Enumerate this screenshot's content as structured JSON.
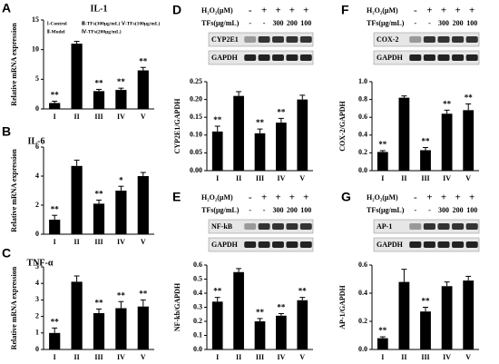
{
  "chart_data": [
    {
      "type": "bar",
      "panel": "A",
      "title": "IL-1",
      "y_label": "Relative mRNA expression",
      "categories": [
        "I",
        "II",
        "III",
        "IV",
        "V"
      ],
      "values": [
        1.0,
        11.0,
        3.0,
        3.2,
        6.5
      ],
      "errors": [
        0.3,
        0.4,
        0.3,
        0.3,
        0.5
      ],
      "annotations": [
        "**",
        null,
        "**",
        "**",
        "**"
      ],
      "color": "#000000",
      "ylim": [
        0,
        15
      ],
      "yticks": [
        0,
        5,
        10,
        15
      ],
      "legend": [
        "Ⅰ-Control",
        "Ⅲ-TFs(300μg/mL)",
        "Ⅴ-TFs(100μg/mL)",
        "Ⅱ-Model",
        "Ⅳ-TFs(200μg/mL)"
      ]
    },
    {
      "type": "bar",
      "panel": "B",
      "title": "IL-6",
      "y_label": "Relative mRNA expression",
      "categories": [
        "I",
        "II",
        "III",
        "IV",
        "V"
      ],
      "values": [
        1.0,
        4.7,
        2.1,
        3.0,
        4.0
      ],
      "errors": [
        0.3,
        0.4,
        0.25,
        0.3,
        0.25
      ],
      "annotations": [
        "**",
        null,
        "**",
        "*",
        null
      ],
      "color": "#000000",
      "ylim": [
        0,
        6
      ],
      "yticks": [
        0,
        2,
        4,
        6
      ]
    },
    {
      "type": "bar",
      "panel": "C",
      "title": "TNF-α",
      "y_label": "Relative mRNA expression",
      "categories": [
        "I",
        "II",
        "III",
        "IV",
        "V"
      ],
      "values": [
        1.0,
        4.1,
        2.2,
        2.5,
        2.6
      ],
      "errors": [
        0.3,
        0.35,
        0.25,
        0.4,
        0.4
      ],
      "annotations": [
        "**",
        null,
        "**",
        "**",
        "**"
      ],
      "color": "#000000",
      "ylim": [
        0,
        5
      ],
      "yticks": [
        0,
        1,
        2,
        3,
        4,
        5
      ]
    },
    {
      "type": "bar",
      "panel": "D",
      "y_label": "CYP2E1/GAPDH",
      "h2o2_label": "H₂O₂(μM)",
      "h2o2": [
        "-",
        "+",
        "+",
        "+",
        "+"
      ],
      "tfs_label": "TFs(μg/mL)",
      "tfs": [
        "-",
        "-",
        "300",
        "200",
        "100"
      ],
      "blot_labels": [
        "CYP2E1",
        "GAPDH"
      ],
      "categories": [
        "I",
        "II",
        "III",
        "IV",
        "V"
      ],
      "values": [
        0.11,
        0.21,
        0.105,
        0.135,
        0.2
      ],
      "errors": [
        0.015,
        0.012,
        0.012,
        0.012,
        0.012
      ],
      "annotations": [
        "**",
        null,
        "**",
        "**",
        null
      ],
      "color": "#000000",
      "ylim": [
        0,
        0.25
      ],
      "yticks": [
        {
          "value": 0,
          "label": "0.00"
        },
        0.05,
        {
          "value": 0.1,
          "label": "0.10"
        },
        0.15,
        {
          "value": 0.2,
          "label": "0.20"
        },
        0.25
      ]
    },
    {
      "type": "bar",
      "panel": "E",
      "y_label": "NF-kb/GAPDH",
      "h2o2_label": "H₂O₂(μM)",
      "h2o2": [
        "-",
        "+",
        "+",
        "+",
        "+"
      ],
      "tfs_label": "TFs(μg/mL)",
      "tfs": [
        "-",
        "-",
        "300",
        "200",
        "100"
      ],
      "blot_labels": [
        "NF-kB",
        "GAPDH"
      ],
      "categories": [
        "I",
        "II",
        "III",
        "IV",
        "V"
      ],
      "values": [
        0.34,
        0.55,
        0.2,
        0.24,
        0.35
      ],
      "errors": [
        0.03,
        0.025,
        0.02,
        0.015,
        0.02
      ],
      "annotations": [
        "**",
        null,
        "**",
        "**",
        "**"
      ],
      "color": "#000000",
      "ylim": [
        0,
        0.6
      ],
      "yticks": [
        {
          "value": 0,
          "label": "0.0"
        },
        0.1,
        0.2,
        0.3,
        0.4,
        0.5,
        0.6
      ]
    },
    {
      "type": "bar",
      "panel": "F",
      "y_label": "COX-2/GAPDH",
      "h2o2_label": "H₂O₂(μM)",
      "h2o2": [
        "-",
        "+",
        "+",
        "+",
        "+"
      ],
      "tfs_label": "TFs(μg/mL)",
      "tfs": [
        "-",
        "-",
        "300",
        "200",
        "100"
      ],
      "blot_labels": [
        "COX-2",
        "GAPDH"
      ],
      "categories": [
        "I",
        "II",
        "III",
        "IV",
        "V"
      ],
      "values": [
        0.21,
        0.82,
        0.23,
        0.64,
        0.68
      ],
      "errors": [
        0.015,
        0.02,
        0.03,
        0.04,
        0.07
      ],
      "annotations": [
        "**",
        null,
        "**",
        "**",
        "**"
      ],
      "color": "#000000",
      "ylim": [
        0,
        1.0
      ],
      "yticks": [
        {
          "value": 0,
          "label": "0.0"
        },
        0.2,
        0.4,
        0.6,
        0.8,
        {
          "value": 1,
          "label": "1.0"
        }
      ]
    },
    {
      "type": "bar",
      "panel": "G",
      "y_label": "AP-1/GAPDH",
      "h2o2_label": "H₂O₂(μM)",
      "h2o2": [
        "-",
        "+",
        "+",
        "+",
        "+"
      ],
      "tfs_label": "TFs(μg/mL)",
      "tfs": [
        "-",
        "-",
        "300",
        "200",
        "100"
      ],
      "blot_labels": [
        "AP-1",
        "GAPDH"
      ],
      "categories": [
        "I",
        "II",
        "III",
        "IV",
        "V"
      ],
      "values": [
        0.08,
        0.48,
        0.27,
        0.45,
        0.49
      ],
      "errors": [
        0.01,
        0.09,
        0.03,
        0.03,
        0.03
      ],
      "annotations": [
        "**",
        null,
        "**",
        null,
        null
      ],
      "color": "#000000",
      "ylim": [
        0,
        0.6
      ],
      "yticks": [
        {
          "value": 0,
          "label": "0.0"
        },
        0.2,
        0.4,
        0.6
      ]
    }
  ]
}
